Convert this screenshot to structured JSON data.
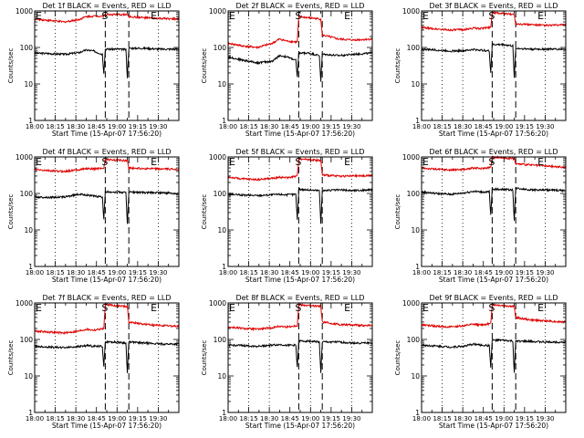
{
  "colors": {
    "events": "#000000",
    "lld": "#e00000",
    "axes": "#000000",
    "background": "#ffffff"
  },
  "common": {
    "xlabel": "Start Time (15-Apr-07 17:56:20)",
    "ylabel": "Counts/sec",
    "x_tick_labels": [
      "18:00",
      "18:15",
      "18:30",
      "18:45",
      "19:00",
      "19:15",
      "19:30"
    ],
    "y_tick_labels": [
      "1",
      "10",
      "100",
      "1000"
    ],
    "x_range_min_after_start": [
      0,
      98
    ],
    "y_range": [
      1,
      1000
    ],
    "y_scale": "log",
    "marker_S": "S",
    "marker_E": "E"
  },
  "chart_data": [
    {
      "type": "line",
      "title": "Det 1f BLACK = Events, RED = LLD",
      "series": [
        {
          "name": "Events",
          "x": [
            0,
            10,
            20,
            30,
            35,
            40,
            46,
            47,
            48,
            55,
            62,
            63,
            64,
            75,
            85,
            98
          ],
          "y": [
            70,
            68,
            65,
            72,
            85,
            80,
            65,
            20,
            90,
            90,
            88,
            15,
            95,
            95,
            90,
            90
          ]
        },
        {
          "name": "LLD",
          "x": [
            0,
            10,
            20,
            30,
            35,
            40,
            47,
            48,
            55,
            63,
            64,
            75,
            85,
            98
          ],
          "y": [
            600,
            550,
            500,
            580,
            700,
            720,
            730,
            800,
            800,
            790,
            700,
            650,
            620,
            600
          ]
        }
      ],
      "S_marker_x": 48,
      "E_marker_x": 64,
      "dotted_x": [
        14,
        28,
        56,
        84
      ]
    },
    {
      "type": "line",
      "title": "Det 2f BLACK = Events, RED = LLD",
      "series": [
        {
          "name": "Events",
          "x": [
            0,
            10,
            20,
            30,
            35,
            40,
            46,
            47,
            48,
            55,
            62,
            63,
            64,
            75,
            85,
            98
          ],
          "y": [
            55,
            45,
            38,
            42,
            60,
            55,
            45,
            15,
            70,
            70,
            60,
            12,
            65,
            60,
            65,
            70
          ]
        },
        {
          "name": "LLD",
          "x": [
            0,
            10,
            20,
            30,
            35,
            40,
            47,
            48,
            55,
            63,
            64,
            75,
            85,
            98
          ],
          "y": [
            130,
            110,
            100,
            130,
            170,
            150,
            140,
            700,
            650,
            600,
            220,
            170,
            160,
            170
          ]
        }
      ],
      "S_marker_x": 48,
      "E_marker_x": 64,
      "dotted_x": [
        14,
        28,
        56,
        84
      ]
    },
    {
      "type": "line",
      "title": "Det 3f BLACK = Events, RED = LLD",
      "series": [
        {
          "name": "Events",
          "x": [
            0,
            10,
            20,
            30,
            35,
            40,
            46,
            47,
            48,
            55,
            62,
            63,
            64,
            75,
            85,
            98
          ],
          "y": [
            90,
            85,
            80,
            82,
            88,
            85,
            80,
            20,
            120,
            120,
            110,
            15,
            95,
            90,
            90,
            90
          ]
        },
        {
          "name": "LLD",
          "x": [
            0,
            10,
            20,
            30,
            35,
            40,
            47,
            48,
            55,
            63,
            64,
            75,
            85,
            98
          ],
          "y": [
            350,
            320,
            300,
            310,
            340,
            330,
            360,
            900,
            850,
            800,
            450,
            420,
            400,
            420
          ]
        }
      ],
      "S_marker_x": 48,
      "E_marker_x": 64,
      "dotted_x": [
        14,
        28,
        56,
        84
      ]
    },
    {
      "type": "line",
      "title": "Det 4f BLACK = Events, RED = LLD",
      "series": [
        {
          "name": "Events",
          "x": [
            0,
            10,
            20,
            30,
            35,
            40,
            46,
            47,
            48,
            55,
            62,
            63,
            64,
            75,
            85,
            98
          ],
          "y": [
            80,
            78,
            80,
            95,
            92,
            85,
            80,
            20,
            110,
            110,
            105,
            15,
            110,
            105,
            105,
            100
          ]
        },
        {
          "name": "LLD",
          "x": [
            0,
            10,
            20,
            30,
            35,
            40,
            47,
            48,
            55,
            63,
            64,
            75,
            85,
            98
          ],
          "y": [
            450,
            420,
            400,
            450,
            480,
            470,
            500,
            850,
            820,
            800,
            500,
            480,
            470,
            460
          ]
        }
      ],
      "S_marker_x": 48,
      "E_marker_x": 64,
      "dotted_x": [
        14,
        28,
        56,
        84
      ]
    },
    {
      "type": "line",
      "title": "Det 5f BLACK = Events, RED = LLD",
      "series": [
        {
          "name": "Events",
          "x": [
            0,
            10,
            20,
            30,
            35,
            40,
            46,
            47,
            48,
            55,
            62,
            63,
            64,
            75,
            85,
            98
          ],
          "y": [
            95,
            90,
            88,
            92,
            95,
            92,
            95,
            20,
            130,
            125,
            120,
            15,
            120,
            125,
            120,
            125
          ]
        },
        {
          "name": "LLD",
          "x": [
            0,
            10,
            20,
            30,
            35,
            40,
            47,
            48,
            55,
            63,
            64,
            75,
            85,
            98
          ],
          "y": [
            280,
            250,
            240,
            260,
            280,
            270,
            300,
            900,
            850,
            800,
            320,
            300,
            300,
            310
          ]
        }
      ],
      "S_marker_x": 48,
      "E_marker_x": 64,
      "dotted_x": [
        14,
        28,
        56,
        84
      ]
    },
    {
      "type": "line",
      "title": "Det 6f BLACK = Events, RED = LLD",
      "series": [
        {
          "name": "Events",
          "x": [
            0,
            10,
            20,
            30,
            35,
            40,
            46,
            47,
            48,
            55,
            62,
            63,
            64,
            75,
            85,
            98
          ],
          "y": [
            110,
            100,
            95,
            105,
            115,
            110,
            110,
            25,
            130,
            130,
            125,
            18,
            140,
            125,
            125,
            120
          ]
        },
        {
          "name": "LLD",
          "x": [
            0,
            10,
            20,
            30,
            35,
            40,
            47,
            48,
            55,
            63,
            64,
            75,
            85,
            98
          ],
          "y": [
            500,
            460,
            440,
            460,
            500,
            480,
            520,
            1000,
            950,
            900,
            650,
            600,
            560,
            520
          ]
        }
      ],
      "S_marker_x": 48,
      "E_marker_x": 64,
      "dotted_x": [
        14,
        28,
        56,
        84
      ]
    },
    {
      "type": "line",
      "title": "Det 7f BLACK = Events, RED = LLD",
      "series": [
        {
          "name": "Events",
          "x": [
            0,
            10,
            20,
            30,
            35,
            40,
            46,
            47,
            48,
            55,
            62,
            63,
            64,
            75,
            85,
            98
          ],
          "y": [
            65,
            62,
            60,
            64,
            68,
            66,
            65,
            18,
            85,
            85,
            80,
            12,
            85,
            80,
            75,
            75
          ]
        },
        {
          "name": "LLD",
          "x": [
            0,
            10,
            20,
            30,
            35,
            40,
            47,
            48,
            55,
            63,
            64,
            75,
            85,
            98
          ],
          "y": [
            170,
            160,
            150,
            170,
            190,
            180,
            200,
            900,
            850,
            800,
            300,
            260,
            240,
            230
          ]
        }
      ],
      "S_marker_x": 48,
      "E_marker_x": 64,
      "dotted_x": [
        14,
        28,
        56,
        84
      ]
    },
    {
      "type": "line",
      "title": "Det 8f BLACK = Events, RED = LLD",
      "series": [
        {
          "name": "Events",
          "x": [
            0,
            10,
            20,
            30,
            35,
            40,
            46,
            47,
            48,
            55,
            62,
            63,
            64,
            75,
            85,
            98
          ],
          "y": [
            70,
            68,
            65,
            70,
            72,
            70,
            70,
            18,
            90,
            90,
            85,
            12,
            85,
            85,
            80,
            80
          ]
        },
        {
          "name": "LLD",
          "x": [
            0,
            10,
            20,
            30,
            35,
            40,
            47,
            48,
            55,
            63,
            64,
            75,
            85,
            98
          ],
          "y": [
            220,
            200,
            190,
            210,
            230,
            220,
            240,
            900,
            850,
            800,
            300,
            260,
            250,
            240
          ]
        }
      ],
      "S_marker_x": 48,
      "E_marker_x": 64,
      "dotted_x": [
        14,
        28,
        56,
        84
      ]
    },
    {
      "type": "line",
      "title": "Det 9f BLACK = Events, RED = LLD",
      "series": [
        {
          "name": "Events",
          "x": [
            0,
            10,
            20,
            30,
            35,
            40,
            46,
            47,
            48,
            55,
            62,
            63,
            64,
            75,
            85,
            98
          ],
          "y": [
            70,
            66,
            62,
            66,
            75,
            70,
            68,
            18,
            95,
            95,
            90,
            12,
            90,
            88,
            85,
            85
          ]
        },
        {
          "name": "LLD",
          "x": [
            0,
            10,
            20,
            30,
            35,
            40,
            47,
            48,
            55,
            63,
            64,
            75,
            85,
            98
          ],
          "y": [
            250,
            230,
            220,
            240,
            260,
            250,
            270,
            900,
            850,
            800,
            400,
            340,
            320,
            300
          ]
        }
      ],
      "S_marker_x": 48,
      "E_marker_x": 64,
      "dotted_x": [
        14,
        28,
        56,
        84
      ]
    }
  ]
}
